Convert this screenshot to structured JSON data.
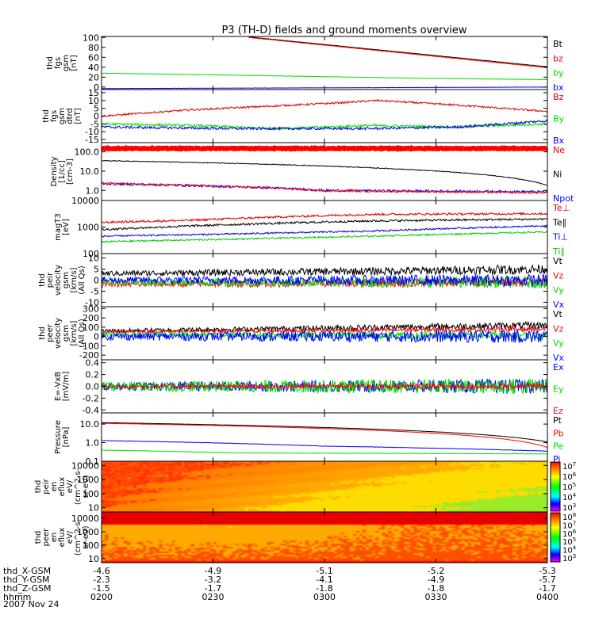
{
  "chart_data": {
    "type": "line",
    "title": "P3 (TH-D) fields and ground moments overview",
    "date_label": "2007 Nov 24",
    "x_axis": {
      "row_labels": [
        "thd_X-GSM",
        "thd_Y-GSM",
        "thd_Z-GSM",
        "hhmm"
      ],
      "columns": [
        {
          "hhmm": "0200",
          "x": "-4.6",
          "y": "-2.3",
          "z": "-1.5"
        },
        {
          "hhmm": "0230",
          "x": "-4.9",
          "y": "-3.2",
          "z": "-1.7"
        },
        {
          "hhmm": "0300",
          "x": "-5.1",
          "y": "-4.1",
          "z": "-1.8"
        },
        {
          "hhmm": "0330",
          "x": "-5.2",
          "y": "-4.9",
          "z": "-1.8"
        },
        {
          "hhmm": "0400",
          "x": "-5.3",
          "y": "-5.7",
          "z": "-1.7"
        }
      ]
    },
    "panels": [
      {
        "id": "fgs_gsm",
        "ylabel": [
          "thd",
          "fgs",
          "gsm",
          "[nT]"
        ],
        "scale": "linear",
        "ylim": [
          -5,
          102
        ],
        "ticks": [
          {
            "v": 100,
            "t": "100"
          },
          {
            "v": 80,
            "t": "80"
          },
          {
            "v": 60,
            "t": "60"
          },
          {
            "v": 40,
            "t": "40"
          },
          {
            "v": 20,
            "t": "20"
          },
          {
            "v": 0,
            "t": "0"
          }
        ],
        "series": [
          {
            "name": "Bt",
            "color": "#000000",
            "noise": 0.3,
            "x": [
              0.33,
              1.0
            ],
            "y": [
              101,
              41
            ]
          },
          {
            "name": "bz",
            "color": "#ff0000",
            "noise": 0.3,
            "x": [
              0.33,
              1.0
            ],
            "y": [
              100,
              39
            ]
          },
          {
            "name": "by",
            "color": "#00dd00",
            "noise": 0.3,
            "x": [
              0,
              0.3,
              0.7,
              1.0
            ],
            "y": [
              28,
              24,
              18,
              15
            ]
          },
          {
            "name": "bx",
            "color": "#0000ff",
            "noise": 0.2,
            "x": [
              0,
              1.0
            ],
            "y": [
              -3,
              0
            ]
          }
        ]
      },
      {
        "id": "fgs_gsm_detrended",
        "ylabel": [
          "thd",
          "fgs",
          "gsm",
          "dtrd",
          "[nT]"
        ],
        "scale": "linear",
        "ylim": [
          -17,
          17
        ],
        "ticks": [
          {
            "v": 15,
            "t": "15"
          },
          {
            "v": 10,
            "t": "10"
          },
          {
            "v": 5,
            "t": "5"
          },
          {
            "v": 0,
            "t": "0"
          },
          {
            "v": -5,
            "t": "-5"
          },
          {
            "v": -10,
            "t": "-10"
          },
          {
            "v": -15,
            "t": "-15"
          }
        ],
        "series": [
          {
            "name": "Bz",
            "color": "#dd0000",
            "noise": 0.6,
            "x": [
              0,
              0.2,
              0.5,
              0.62,
              0.8,
              1.0
            ],
            "y": [
              0,
              4,
              8,
              10,
              7,
              3
            ]
          },
          {
            "name": "By",
            "color": "#00dd00",
            "noise": 0.8,
            "x": [
              0,
              0.2,
              0.4,
              0.6,
              0.8,
              1.0
            ],
            "y": [
              -5,
              -6,
              -8,
              -6,
              -7,
              -5
            ]
          },
          {
            "name": "Bx",
            "color": "#0000dd",
            "noise": 0.8,
            "x": [
              0,
              0.3,
              0.6,
              0.8,
              1.0
            ],
            "y": [
              -7,
              -8,
              -8,
              -7,
              -3
            ]
          }
        ]
      },
      {
        "id": "density",
        "ylabel": [
          "Density",
          "[1/cc]",
          "[cm-3]"
        ],
        "scale": "log",
        "ylim": [
          0.3,
          300
        ],
        "ticks": [
          {
            "v": 100,
            "t": "100.0"
          },
          {
            "v": 10,
            "t": "10.0"
          },
          {
            "v": 1,
            "t": "1.0"
          }
        ],
        "series": [
          {
            "name": "Ne",
            "color": "#ff0000",
            "noise": 0.02,
            "x": [
              0,
              1.0
            ],
            "y": [
              150,
              150
            ],
            "bold": true
          },
          {
            "name": "Ni",
            "color": "#000000",
            "noise": 0.02,
            "x": [
              0,
              1.0
            ],
            "y": [
              35,
              1.8
            ]
          },
          {
            "name": "Npot",
            "color": "#0000ff",
            "noise": 0.06,
            "x": [
              0,
              0.1,
              0.4,
              0.5,
              1.0
            ],
            "y": [
              2.2,
              2.0,
              1.3,
              1.0,
              0.85
            ]
          },
          {
            "name": "Npot_red",
            "color": "#ff0000",
            "noise": 0.05,
            "x": [
              0,
              0.1,
              0.4,
              0.5,
              1.0
            ],
            "y": [
              2.4,
              2.1,
              1.3,
              0.95,
              0.75
            ],
            "hide_legend": true
          }
        ]
      },
      {
        "id": "temperature",
        "ylabel": [
          "magT3",
          "[eV]"
        ],
        "scale": "log",
        "ylim": [
          100,
          10000
        ],
        "ticks": [
          {
            "v": 10000,
            "t": "10000"
          },
          {
            "v": 1000,
            "t": "1000"
          },
          {
            "v": 100,
            "t": "100"
          }
        ],
        "series": [
          {
            "name": "Te⊥",
            "color": "#dd0000",
            "noise": 0.04,
            "x": [
              0,
              0.2,
              0.4,
              0.6,
              1.0
            ],
            "y": [
              1500,
              1800,
              2400,
              3000,
              3200
            ]
          },
          {
            "name": "Te∥",
            "color": "#000000",
            "noise": 0.04,
            "x": [
              0,
              0.2,
              0.4,
              0.6,
              1.0
            ],
            "y": [
              800,
              1100,
              1400,
              1700,
              2000
            ]
          },
          {
            "name": "Ti⊥",
            "color": "#0000dd",
            "noise": 0.03,
            "x": [
              0,
              0.3,
              0.6,
              1.0
            ],
            "y": [
              450,
              550,
              700,
              1100
            ]
          },
          {
            "name": "Ti∥",
            "color": "#00cc00",
            "noise": 0.03,
            "x": [
              0,
              0.3,
              0.6,
              1.0
            ],
            "y": [
              280,
              350,
              450,
              650
            ]
          }
        ]
      },
      {
        "id": "peir_velocity",
        "ylabel": [
          "thd",
          "peir",
          "velocity",
          "gsm",
          "[km/s]",
          "(All Qs)"
        ],
        "scale": "linear",
        "ylim": [
          -12,
          12
        ],
        "ticks": [
          {
            "v": 10,
            "t": "10"
          },
          {
            "v": 5,
            "t": "5"
          },
          {
            "v": 0,
            "t": "0"
          },
          {
            "v": -5,
            "t": "-5"
          },
          {
            "v": -10,
            "t": "-10"
          }
        ],
        "series": [
          {
            "name": "Vt",
            "color": "#000000",
            "noise": 1.2,
            "x": [
              0,
              0.6,
              1.0
            ],
            "y": [
              3,
              4,
              5
            ]
          },
          {
            "name": "Vz",
            "color": "#ff0000",
            "noise": 1.2,
            "x": [
              0,
              1.0
            ],
            "y": [
              -2,
              -1
            ]
          },
          {
            "name": "Vy",
            "color": "#00dd00",
            "noise": 1.5,
            "x": [
              0,
              1.0
            ],
            "y": [
              -1,
              -1
            ]
          },
          {
            "name": "Vx",
            "color": "#0000ff",
            "noise": 1.5,
            "x": [
              0,
              1.0
            ],
            "y": [
              0,
              0
            ]
          }
        ]
      },
      {
        "id": "peer_velocity",
        "ylabel": [
          "thd",
          "peer",
          "velocity",
          "gsm",
          "[km/s]",
          "(All Qs)"
        ],
        "scale": "linear",
        "ylim": [
          -250,
          320
        ],
        "ticks": [
          {
            "v": 300,
            "t": "300"
          },
          {
            "v": 200,
            "t": "200"
          },
          {
            "v": 100,
            "t": "100"
          },
          {
            "v": 0,
            "t": "0"
          },
          {
            "v": -100,
            "t": "-100"
          },
          {
            "v": -200,
            "t": "-200"
          }
        ],
        "series": [
          {
            "name": "Vt",
            "color": "#000000",
            "noise": 22,
            "x": [
              0,
              0.5,
              1.0
            ],
            "y": [
              60,
              90,
              120
            ]
          },
          {
            "name": "Vz",
            "color": "#ff0000",
            "noise": 15,
            "x": [
              0,
              1.0
            ],
            "y": [
              50,
              80
            ]
          },
          {
            "name": "Vy",
            "color": "#00dd00",
            "noise": 25,
            "x": [
              0,
              1.0
            ],
            "y": [
              20,
              10
            ]
          },
          {
            "name": "Vx",
            "color": "#0000ff",
            "noise": 40,
            "x": [
              0,
              1.0
            ],
            "y": [
              0,
              0
            ]
          }
        ]
      },
      {
        "id": "efield",
        "ylabel": [
          "E=-VxB",
          "[mV/m]"
        ],
        "scale": "linear",
        "ylim": [
          -0.45,
          0.45
        ],
        "ticks": [
          {
            "v": 0.4,
            "t": "0.4"
          },
          {
            "v": 0.2,
            "t": "0.2"
          },
          {
            "v": 0,
            "t": "0.0"
          },
          {
            "v": -0.2,
            "t": "-0.2"
          },
          {
            "v": -0.4,
            "t": "-0.4"
          }
        ],
        "series": [
          {
            "name": "Ex",
            "color": "#0000ff",
            "noise": 0.07,
            "x": [
              0,
              1.0
            ],
            "y": [
              0,
              0
            ]
          },
          {
            "name": "Ey",
            "color": "#00dd00",
            "noise": 0.08,
            "x": [
              0,
              1.0
            ],
            "y": [
              0,
              0
            ]
          },
          {
            "name": "Ez",
            "color": "#ff0000",
            "noise": 0.025,
            "x": [
              0,
              1.0
            ],
            "y": [
              0,
              0
            ]
          }
        ]
      },
      {
        "id": "pressure",
        "ylabel": [
          "Pressure",
          "[nPa]"
        ],
        "scale": "log",
        "ylim": [
          0.1,
          40
        ],
        "ticks": [
          {
            "v": 10,
            "t": "10.0"
          },
          {
            "v": 1,
            "t": "1.0"
          },
          {
            "v": 0.1,
            "t": "0.1"
          }
        ],
        "series": [
          {
            "name": "Pt",
            "color": "#000000",
            "noise": 0.005,
            "x": [
              0,
              1.0
            ],
            "y": [
              12,
              1.1
            ]
          },
          {
            "name": "Pb",
            "color": "#ff0000",
            "noise": 0.005,
            "x": [
              0,
              1.0
            ],
            "y": [
              11,
              0.55
            ]
          },
          {
            "name": "Pe",
            "color": "#00dd00",
            "noise": 0.01,
            "x": [
              0,
              0.3,
              1.0
            ],
            "y": [
              0.4,
              0.28,
              0.25
            ]
          },
          {
            "name": "Pi",
            "color": "#0000ff",
            "noise": 0.01,
            "x": [
              0,
              0.5,
              1.0
            ],
            "y": [
              1.3,
              0.65,
              0.35
            ]
          }
        ]
      },
      {
        "id": "peir_eflux",
        "ylabel": [
          "thd",
          "peir",
          "en",
          "eflux",
          "eV/",
          "(cm^2-s-",
          "sr-eV)"
        ],
        "scale": "log",
        "ylim": [
          5,
          20000
        ],
        "type": "spectrogram",
        "ticks": [
          {
            "v": 10000,
            "t": "10000"
          },
          {
            "v": 1000,
            "t": "1000"
          },
          {
            "v": 100,
            "t": "100"
          },
          {
            "v": 10,
            "t": "10"
          }
        ],
        "colorbar_ticks": [
          "10^7",
          "10^6",
          "10^5",
          "10^4",
          "10^3"
        ]
      },
      {
        "id": "peer_eflux",
        "ylabel": [
          "thd",
          "peer",
          "en",
          "eflux",
          "eV/",
          "(cm^2-s-",
          "sr-eV)"
        ],
        "scale": "log",
        "ylim": [
          5,
          30000
        ],
        "type": "spectrogram",
        "ticks": [
          {
            "v": 10000,
            "t": "10000"
          },
          {
            "v": 1000,
            "t": "1000"
          },
          {
            "v": 100,
            "t": "100"
          },
          {
            "v": 10,
            "t": "10"
          }
        ],
        "colorbar_ticks": [
          "10^8",
          "10^7",
          "10^6",
          "10^5",
          "10^4",
          "10^3"
        ]
      }
    ]
  }
}
